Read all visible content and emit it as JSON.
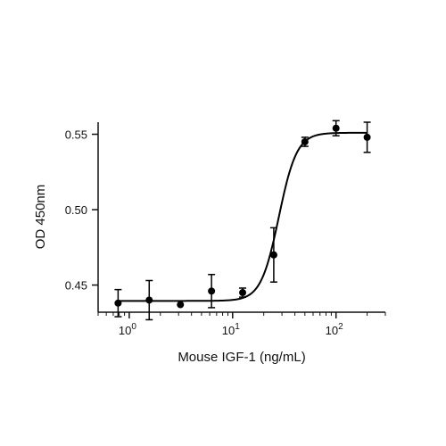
{
  "chart_data": {
    "type": "scatter",
    "xlabel": "Mouse IGF-1 (ng/mL)",
    "ylabel": "OD 450nm",
    "x_scale": "log",
    "xlim": [
      0.5,
      300
    ],
    "ylim": [
      0.432,
      0.558
    ],
    "y_ticks": [
      {
        "value": 0.45,
        "label": "0.45"
      },
      {
        "value": 0.5,
        "label": "0.50"
      },
      {
        "value": 0.55,
        "label": "0.55"
      }
    ],
    "x_ticks": [
      {
        "value": 1,
        "base": "10",
        "exp": "0"
      },
      {
        "value": 10,
        "base": "10",
        "exp": "1"
      },
      {
        "value": 100,
        "base": "10",
        "exp": "2"
      }
    ],
    "grid": false,
    "points": [
      {
        "x": 0.78,
        "y": 0.438,
        "err": 0.009
      },
      {
        "x": 1.56,
        "y": 0.44,
        "err": 0.013
      },
      {
        "x": 3.125,
        "y": 0.437,
        "err": 0.0
      },
      {
        "x": 6.25,
        "y": 0.446,
        "err": 0.011
      },
      {
        "x": 12.5,
        "y": 0.445,
        "err": 0.003
      },
      {
        "x": 25,
        "y": 0.47,
        "err": 0.018
      },
      {
        "x": 50,
        "y": 0.545,
        "err": 0.003
      },
      {
        "x": 100,
        "y": 0.554,
        "err": 0.005
      },
      {
        "x": 200,
        "y": 0.548,
        "err": 0.01
      }
    ],
    "fit": {
      "model": "4PL",
      "bottom": 0.4395,
      "top": 0.551,
      "ec50": 28,
      "hill": 5,
      "x_range": [
        0.78,
        200
      ]
    }
  }
}
